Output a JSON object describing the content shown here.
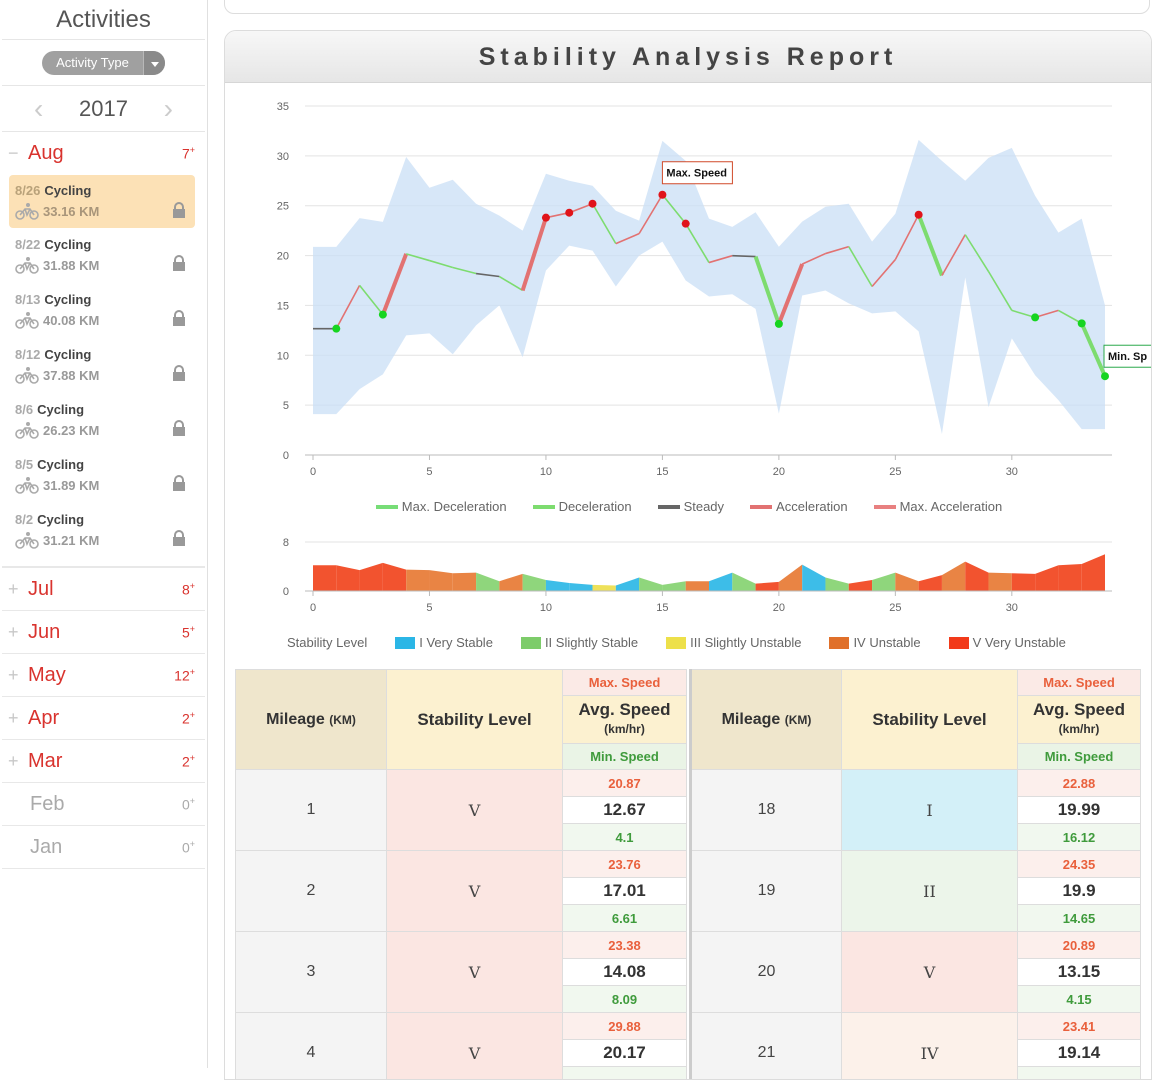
{
  "sidebar": {
    "title": "Activities",
    "filter_label": "Activity Type",
    "year": "2017",
    "prev_icon": "chevron-left-icon",
    "next_icon": "chevron-right-icon",
    "open_month": {
      "name": "Aug",
      "count": "7",
      "count_sup": "+"
    },
    "activities": [
      {
        "date": "8/26",
        "type": "Cycling",
        "km": "33.16 KM",
        "selected": true
      },
      {
        "date": "8/22",
        "type": "Cycling",
        "km": "31.88 KM"
      },
      {
        "date": "8/13",
        "type": "Cycling",
        "km": "40.08 KM"
      },
      {
        "date": "8/12",
        "type": "Cycling",
        "km": "37.88 KM"
      },
      {
        "date": "8/6",
        "type": "Cycling",
        "km": "26.23 KM"
      },
      {
        "date": "8/5",
        "type": "Cycling",
        "km": "31.89 KM"
      },
      {
        "date": "8/2",
        "type": "Cycling",
        "km": "31.21 KM"
      }
    ],
    "months": [
      {
        "name": "Jul",
        "count": "8",
        "active": true
      },
      {
        "name": "Jun",
        "count": "5",
        "active": true
      },
      {
        "name": "May",
        "count": "12",
        "active": true
      },
      {
        "name": "Apr",
        "count": "2",
        "active": true
      },
      {
        "name": "Mar",
        "count": "2",
        "active": true
      },
      {
        "name": "Feb",
        "count": "0",
        "active": false
      },
      {
        "name": "Jan",
        "count": "0",
        "active": false
      }
    ],
    "count_sup": "+"
  },
  "report": {
    "title": "Stability Analysis Report",
    "legend_speed": [
      {
        "label": "Max. Deceleration",
        "color": "#77dd77"
      },
      {
        "label": "Deceleration",
        "color": "#7ddc6f"
      },
      {
        "label": "Steady",
        "color": "#666666"
      },
      {
        "label": "Acceleration",
        "color": "#e27272"
      },
      {
        "label": "Max. Acceleration",
        "color": "#e88080"
      }
    ],
    "legend_stability_title": "Stability Level",
    "legend_stability": [
      {
        "label": "I Very Stable",
        "color": "#2bb6e6"
      },
      {
        "label": "II Slightly Stable",
        "color": "#7dcc6a"
      },
      {
        "label": "III Slightly Unstable",
        "color": "#ede04a"
      },
      {
        "label": "IV Unstable",
        "color": "#e0702a"
      },
      {
        "label": "V Very Unstable",
        "color": "#f23a1a"
      }
    ],
    "max_speed_label": "Max. Speed",
    "min_speed_label": "Min. Sp"
  },
  "chart_data": [
    {
      "type": "line",
      "title": "",
      "xlabel": "",
      "ylabel": "",
      "xlim": [
        0,
        34
      ],
      "ylim": [
        0,
        35
      ],
      "x_ticks": [
        0,
        5,
        10,
        15,
        20,
        25,
        30
      ],
      "y_ticks": [
        0,
        5,
        10,
        15,
        20,
        25,
        30,
        35
      ],
      "grid": true,
      "legend": "bottom",
      "x": [
        0,
        1,
        2,
        3,
        4,
        5,
        6,
        7,
        8,
        9,
        10,
        11,
        12,
        13,
        14,
        15,
        16,
        17,
        18,
        19,
        20,
        21,
        22,
        23,
        24,
        25,
        26,
        27,
        28,
        29,
        30,
        31,
        32,
        33,
        34
      ],
      "avg": [
        12.67,
        12.67,
        17.01,
        14.08,
        20.17,
        19.5,
        18.8,
        18.2,
        17.9,
        16.5,
        23.8,
        24.3,
        25.2,
        21.2,
        22.2,
        26.1,
        23.2,
        19.3,
        19.99,
        19.9,
        13.15,
        19.14,
        20.2,
        20.9,
        16.9,
        19.6,
        24.1,
        18.0,
        22.1,
        18.4,
        14.5,
        13.8,
        14.5,
        13.2,
        7.9
      ],
      "band_max": [
        20.87,
        20.87,
        23.76,
        23.38,
        29.88,
        26.8,
        27.6,
        25.2,
        24.0,
        22.5,
        28.2,
        27.5,
        27.0,
        24.5,
        23.5,
        31.5,
        29.5,
        23.7,
        22.88,
        24.35,
        20.89,
        23.41,
        24.9,
        25.2,
        21.4,
        24.2,
        31.6,
        29.5,
        27.5,
        29.8,
        30.8,
        26.0,
        22.3,
        23.7,
        15.0
      ],
      "band_min": [
        4.1,
        4.1,
        6.61,
        8.09,
        12.0,
        12.2,
        10.1,
        13.0,
        15.0,
        9.8,
        18.5,
        21.0,
        20.5,
        16.9,
        20.0,
        21.4,
        17.5,
        15.9,
        16.12,
        14.65,
        4.15,
        16.0,
        16.5,
        15.2,
        14.2,
        14.4,
        12.4,
        2.1,
        17.8,
        4.8,
        11.7,
        8.0,
        5.5,
        2.6,
        2.6
      ],
      "markers_max": [
        10,
        11,
        12,
        15,
        16,
        26
      ],
      "markers_min": [
        1,
        3,
        20,
        31,
        33,
        34
      ],
      "labels": [
        {
          "x": 15,
          "text": "Max. Speed"
        },
        {
          "x": 34,
          "text": "Min. Sp"
        }
      ]
    },
    {
      "type": "area",
      "title": "",
      "xlim": [
        0,
        34
      ],
      "ylim": [
        0,
        8
      ],
      "x_ticks": [
        0,
        5,
        10,
        15,
        20,
        25,
        30
      ],
      "y_ticks": [
        0,
        8
      ],
      "x": [
        0,
        1,
        2,
        3,
        4,
        5,
        6,
        7,
        8,
        9,
        10,
        11,
        12,
        13,
        14,
        15,
        16,
        17,
        18,
        19,
        20,
        21,
        22,
        23,
        24,
        25,
        26,
        27,
        28,
        29,
        30,
        31,
        32,
        33,
        34
      ],
      "values": [
        4.2,
        4.2,
        3.4,
        4.6,
        3.5,
        3.4,
        2.9,
        3.0,
        1.6,
        2.8,
        1.8,
        1.3,
        1.0,
        0.9,
        2.2,
        1.0,
        1.6,
        1.6,
        3.0,
        1.2,
        1.5,
        4.3,
        2.2,
        1.2,
        1.8,
        3.0,
        1.6,
        2.6,
        4.8,
        3.0,
        2.9,
        2.8,
        4.2,
        4.4,
        6.0
      ],
      "levels": [
        "V",
        "V",
        "V",
        "V",
        "V",
        "IV",
        "IV",
        "IV",
        "II",
        "IV",
        "II",
        "I",
        "I",
        "III",
        "I",
        "II",
        "II",
        "IV",
        "I",
        "II",
        "V",
        "IV",
        "I",
        "II",
        "V",
        "II",
        "IV",
        "V",
        "IV",
        "V",
        "IV",
        "V",
        "V",
        "V",
        "V"
      ]
    }
  ],
  "table_headers": {
    "mileage": "Mileage",
    "mileage_unit": "(KM)",
    "stability": "Stability Level",
    "max_speed": "Max. Speed",
    "avg_speed": "Avg. Speed",
    "avg_unit": "(km/hr)",
    "min_speed": "Min. Speed"
  },
  "table_left": [
    {
      "mile": "1",
      "level": "V",
      "max": "20.87",
      "avg": "12.67",
      "min": "4.1"
    },
    {
      "mile": "2",
      "level": "V",
      "max": "23.76",
      "avg": "17.01",
      "min": "6.61"
    },
    {
      "mile": "3",
      "level": "V",
      "max": "23.38",
      "avg": "14.08",
      "min": "8.09"
    },
    {
      "mile": "4",
      "level": "V",
      "max": "29.88",
      "avg": "20.17",
      "min": ""
    }
  ],
  "table_right": [
    {
      "mile": "18",
      "level": "I",
      "max": "22.88",
      "avg": "19.99",
      "min": "16.12"
    },
    {
      "mile": "19",
      "level": "II",
      "max": "24.35",
      "avg": "19.9",
      "min": "14.65"
    },
    {
      "mile": "20",
      "level": "V",
      "max": "20.89",
      "avg": "13.15",
      "min": "4.15"
    },
    {
      "mile": "21",
      "level": "IV",
      "max": "23.41",
      "avg": "19.14",
      "min": ""
    }
  ],
  "level_colors": {
    "I": "#d3f0f8",
    "II": "#ecf5ea",
    "III": "#fbf6d8",
    "IV": "#fcf1ea",
    "V": "#fbe6e2"
  }
}
